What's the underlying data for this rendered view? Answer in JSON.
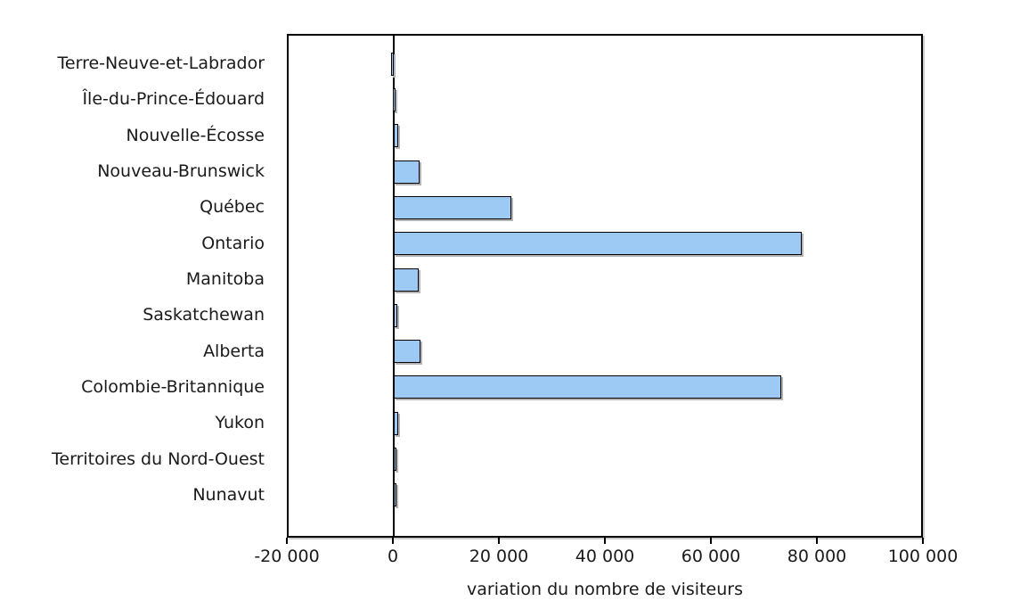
{
  "chart_data": {
    "type": "bar",
    "orientation": "horizontal",
    "title": "",
    "xlabel": "variation du nombre de visiteurs",
    "ylabel": "",
    "xlim": [
      -20000,
      100000
    ],
    "grid": false,
    "legend": null,
    "categories": [
      "Terre-Neuve-et-Labrador",
      "Île-du-Prince-Édouard",
      "Nouvelle-Écosse",
      "Nouveau-Brunswick",
      "Québec",
      "Ontario",
      "Manitoba",
      "Saskatchewan",
      "Alberta",
      "Colombie-Britannique",
      "Yukon",
      "Territoires du Nord-Ouest",
      "Nunavut"
    ],
    "values": [
      -600,
      -300,
      800,
      4900,
      22300,
      77400,
      4600,
      700,
      5000,
      73500,
      800,
      -100,
      200
    ],
    "x_ticks": [
      -20000,
      0,
      20000,
      40000,
      60000,
      80000,
      100000
    ],
    "x_tick_labels": [
      "-20 000",
      "0",
      "20 000",
      "40 000",
      "60 000",
      "80 000",
      "100 000"
    ],
    "colors": {
      "bar_fill": "#9DC9F5",
      "bar_border": "#000000",
      "bar_shadow": "#b4b4b4",
      "axis": "#000000",
      "text": "#1a1a1a",
      "background": "#ffffff"
    }
  }
}
